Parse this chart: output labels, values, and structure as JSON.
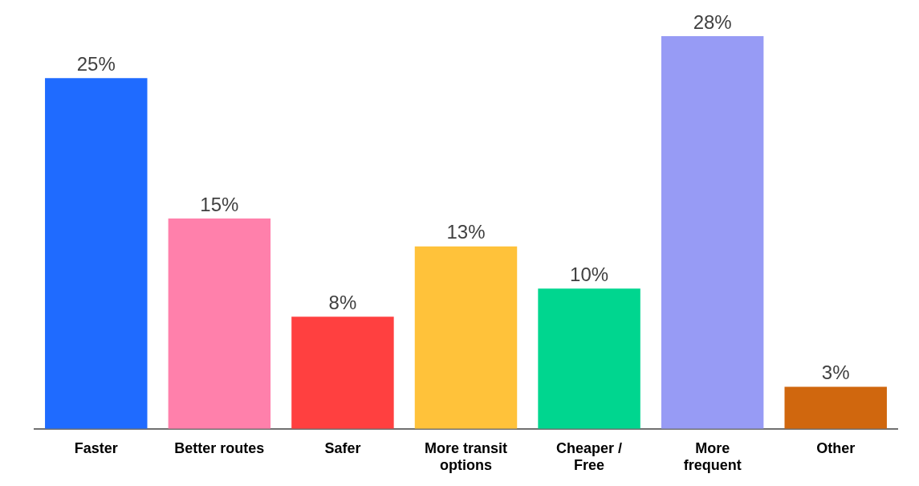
{
  "chart_data": {
    "type": "bar",
    "categories": [
      "Faster",
      "Better routes",
      "Safer",
      "More transit options",
      "Cheaper / Free",
      "More frequent",
      "Other"
    ],
    "values": [
      25,
      15,
      8,
      13,
      10,
      28,
      3
    ],
    "colors": [
      "#1f6bff",
      "#ff80ab",
      "#ff4040",
      "#ffc23a",
      "#00d68f",
      "#979bf5",
      "#d0670e"
    ],
    "value_labels": [
      "25%",
      "15%",
      "8%",
      "13%",
      "10%",
      "28%",
      "3%"
    ],
    "grid": false,
    "legend": false
  }
}
